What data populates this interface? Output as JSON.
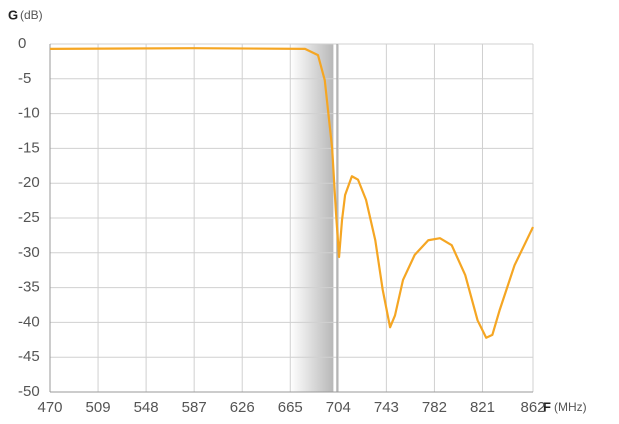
{
  "chart_data": {
    "type": "line",
    "y_label": "G",
    "y_unit": "(dB)",
    "x_label": "F",
    "x_unit": "(MHz)",
    "x": [
      470,
      587,
      677,
      687.5,
      693,
      699,
      702,
      704.6,
      707,
      709.5,
      715,
      720,
      726.5,
      734,
      740,
      746,
      750,
      756.5,
      766,
      777,
      786.5,
      796,
      807,
      817,
      824,
      829,
      835,
      847,
      862
    ],
    "series": [
      {
        "color": "#f5a623",
        "values": [
          -0.7,
          -0.6,
          -0.7,
          -1.6,
          -5.2,
          -15,
          -24,
          -30.6,
          -25.3,
          -21.7,
          -19,
          -19.5,
          -22.4,
          -28.2,
          -35.3,
          -40.7,
          -39,
          -33.9,
          -30.3,
          -28.2,
          -27.9,
          -28.9,
          -33.2,
          -39.7,
          -42.2,
          -41.8,
          -38.2,
          -31.8,
          -26.3
        ]
      }
    ],
    "xlim": [
      470,
      862
    ],
    "ylim": [
      -50,
      0
    ],
    "xticks": [
      470,
      509,
      548,
      587,
      626,
      665,
      704,
      743,
      782,
      821,
      862
    ],
    "yticks": [
      0,
      -5,
      -10,
      -15,
      -20,
      -25,
      -30,
      -35,
      -40,
      -45,
      -50
    ],
    "highlight_xlim": [
      665,
      700
    ],
    "marker_x": 703,
    "grid": true
  }
}
